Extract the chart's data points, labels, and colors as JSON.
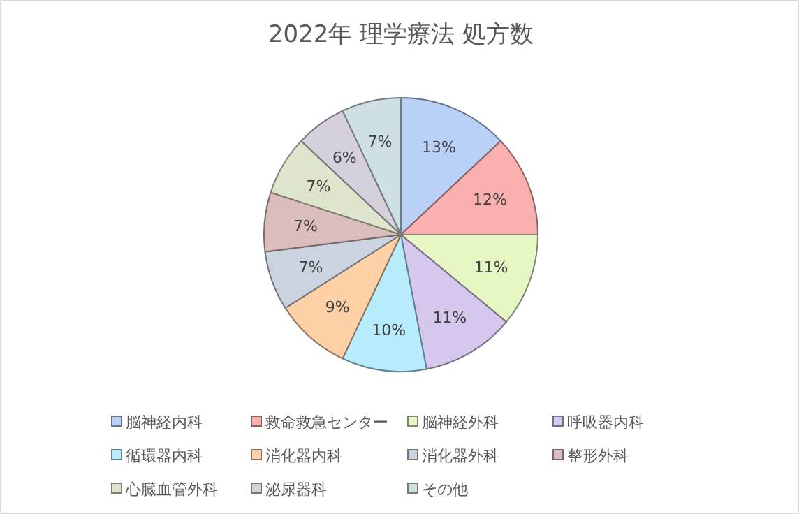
{
  "chart_data": {
    "type": "pie",
    "title": "2022年 理学療法 処方数",
    "categories": [
      "脳神経内科",
      "救命救急センター",
      "脳神経外科",
      "呼吸器内科",
      "循環器内科",
      "消化器内科",
      "消化器外科",
      "整形外科",
      "心臓血管外科",
      "泌尿器科",
      "その他"
    ],
    "values": [
      13,
      12,
      11,
      11,
      10,
      9,
      7,
      7,
      7,
      6,
      7
    ],
    "value_labels": [
      "13%",
      "12%",
      "11%",
      "11%",
      "10%",
      "9%",
      "7%",
      "7%",
      "7%",
      "6%",
      "7%"
    ],
    "colors": [
      "#b9d1f7",
      "#fbb0b0",
      "#e6f7c4",
      "#d6c8ec",
      "#b6ecfb",
      "#fdd0a6",
      "#ccd3e0",
      "#dcbdbd",
      "#dde6cc",
      "#d6cfdc",
      "#cfe0e4"
    ],
    "legend": "bottom"
  }
}
